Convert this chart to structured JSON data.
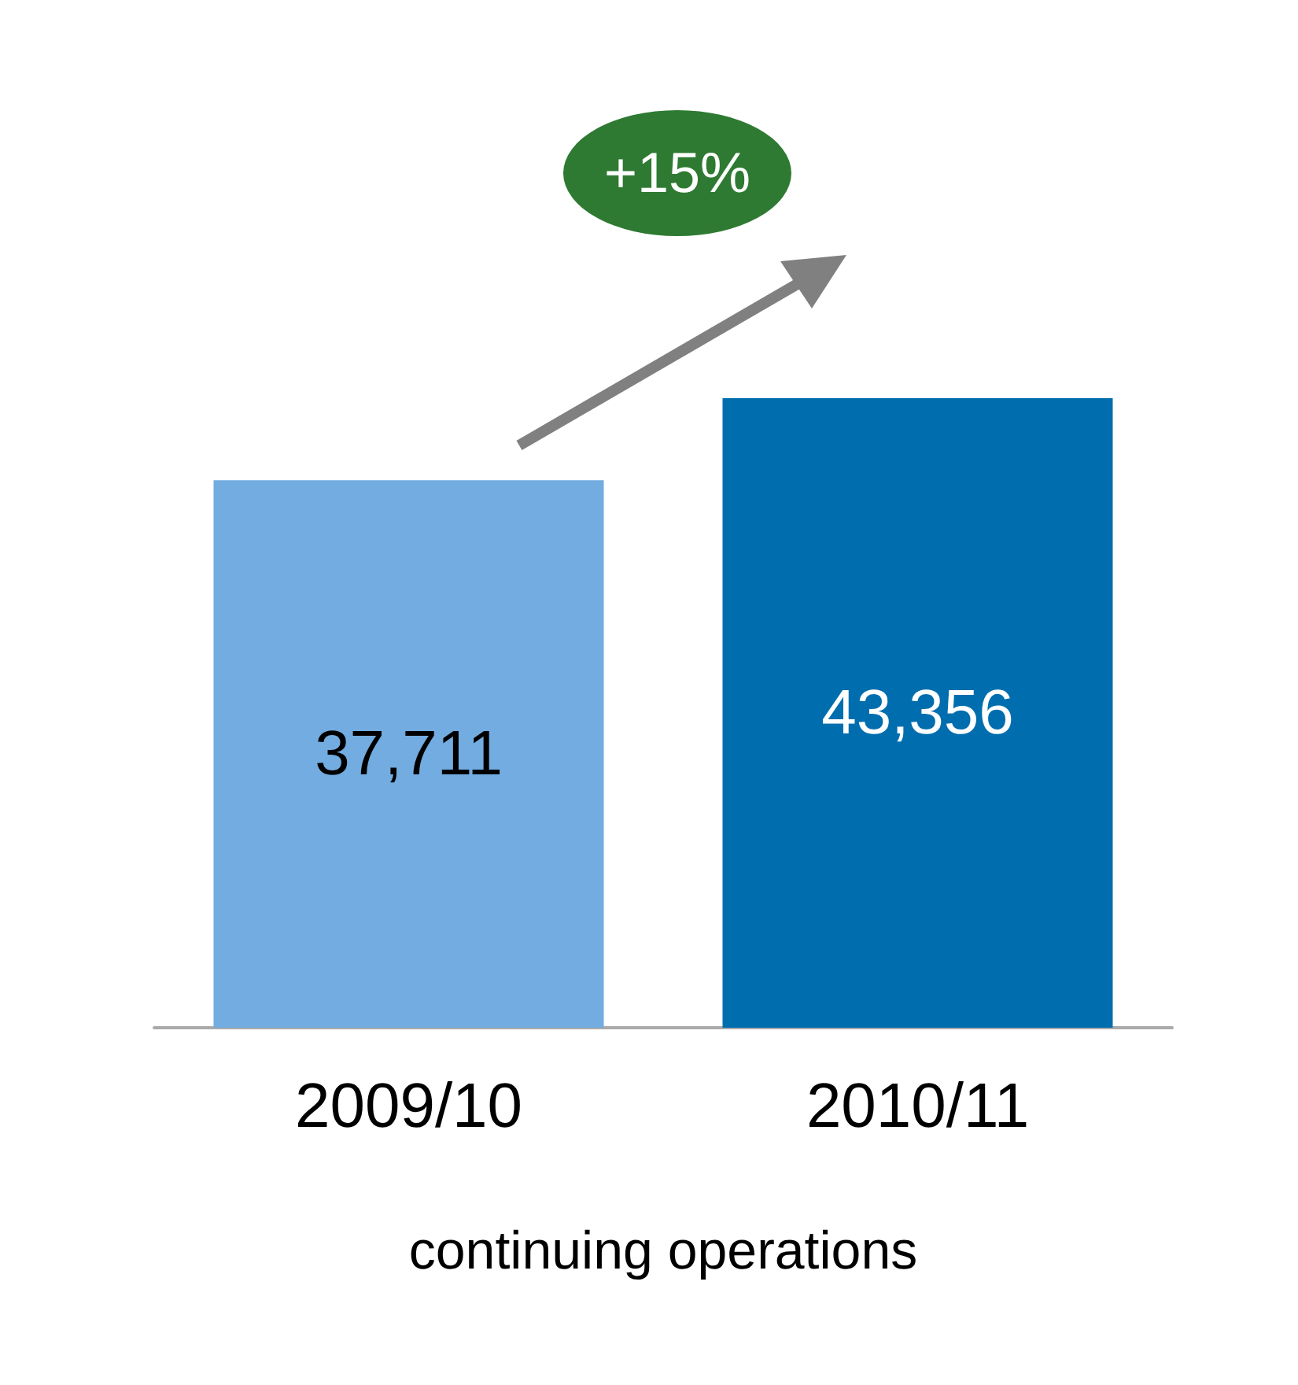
{
  "chart_data": {
    "type": "bar",
    "categories": [
      "2009/10",
      "2010/11"
    ],
    "values": [
      37711,
      43356
    ],
    "value_labels": [
      "37,711",
      "43,356"
    ],
    "colors": [
      "#72ace0",
      "#006eae"
    ],
    "xlabel": "continuing operations",
    "annotations": [
      "+15%"
    ]
  }
}
